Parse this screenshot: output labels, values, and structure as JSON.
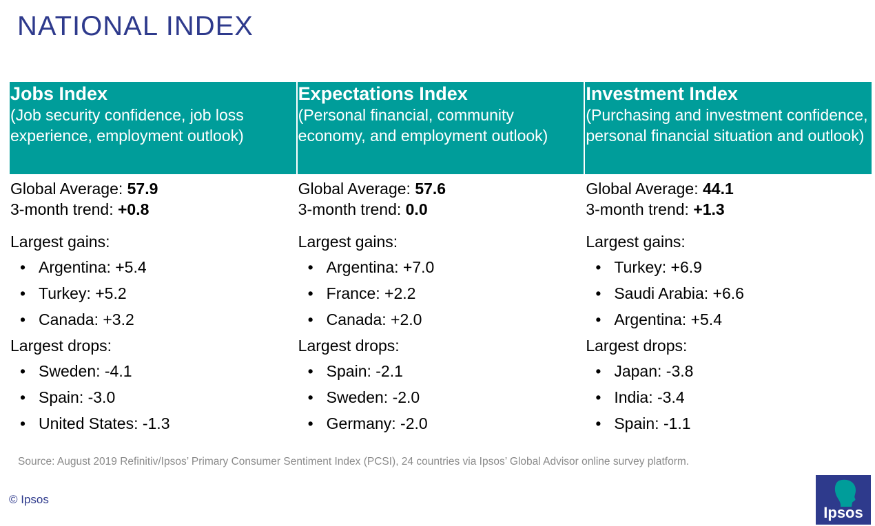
{
  "title": "NATIONAL INDEX",
  "columns": [
    {
      "heading": "Jobs Index",
      "subheading": "(Job security confidence, job loss experience, employment outlook)",
      "global_label": "Global Average: ",
      "global_value": "57.9",
      "trend_label": "3-month trend: ",
      "trend_value": "+0.8",
      "gains_label": "Largest gains:",
      "gains": [
        "Argentina: +5.4",
        "Turkey: +5.2",
        "Canada: +3.2"
      ],
      "drops_label": "Largest drops:",
      "drops": [
        "Sweden: -4.1",
        "Spain: -3.0",
        "United States: -1.3"
      ]
    },
    {
      "heading": "Expectations Index",
      "subheading": "(Personal financial, community economy, and employment outlook)",
      "global_label": "Global Average: ",
      "global_value": "57.6",
      "trend_label": "3-month trend: ",
      "trend_value": "0.0",
      "gains_label": "Largest gains:",
      "gains": [
        "Argentina: +7.0",
        "France: +2.2",
        "Canada: +2.0"
      ],
      "drops_label": "Largest drops:",
      "drops": [
        "Spain: -2.1",
        "Sweden: -2.0",
        "Germany: -2.0"
      ]
    },
    {
      "heading": "Investment Index",
      "subheading": "(Purchasing and investment confidence, personal financial situation and outlook)",
      "global_label": "Global Average: ",
      "global_value": "44.1",
      "trend_label": "3-month trend: ",
      "trend_value": "+1.3",
      "gains_label": "Largest gains:",
      "gains": [
        "Turkey: +6.9",
        "Saudi Arabia: +6.6",
        "Argentina: +5.4"
      ],
      "drops_label": "Largest drops:",
      "drops": [
        "Japan: -3.8",
        "India: -3.4",
        "Spain: -1.1"
      ]
    }
  ],
  "bullet": "•",
  "source": "Source: August 2019 Refinitiv/Ipsos’ Primary Consumer Sentiment Index (PCSI), 24 countries via Ipsos’ Global Advisor online survey platform.",
  "copyright": "© Ipsos",
  "logo_text": "Ipsos",
  "colors": {
    "header_bg": "#009d9a",
    "title": "#2e3a8c"
  }
}
